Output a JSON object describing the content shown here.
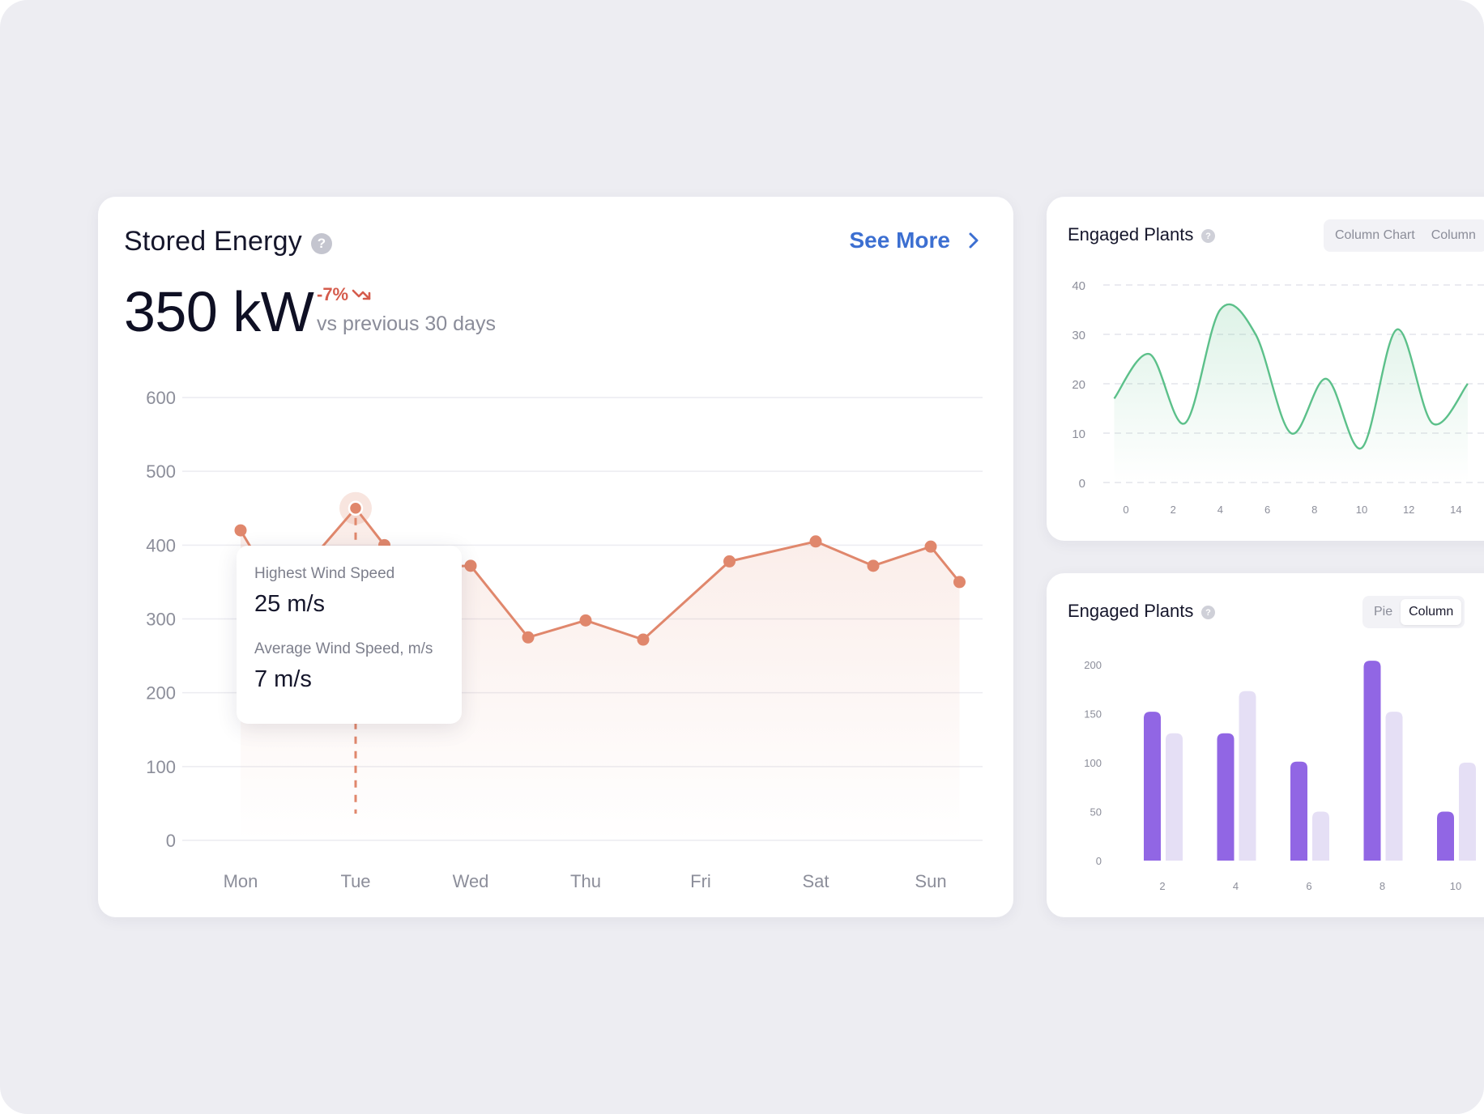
{
  "stored_energy": {
    "title": "Stored Energy",
    "see_more": "See More",
    "value": "350 kW",
    "delta": "-7%",
    "delta_caption": "vs previous 30 days",
    "tooltip": {
      "label_1": "Highest Wind Speed",
      "value_1": "25 m/s",
      "label_2": "Average Wind Speed, m/s",
      "value_2": "7 m/s"
    }
  },
  "engaged_plants_line": {
    "title": "Engaged Plants",
    "tabs": [
      "Column Chart",
      "Column"
    ]
  },
  "engaged_plants_column": {
    "title": "Engaged Plants",
    "tabs": [
      "Pie",
      "Column"
    ],
    "active_tab": "Column"
  },
  "colors": {
    "line_orange": "#e0876c",
    "line_green": "#5cc08a",
    "bar_dark": "#9166e4",
    "bar_light": "#e5dff5",
    "link_blue": "#3c6fd1",
    "delta_red": "#d55c4d"
  },
  "chart_data": [
    {
      "type": "line",
      "title": "",
      "x": [
        0,
        0.25,
        0.5,
        1.0,
        1.25,
        1.5,
        2.0,
        2.5,
        3.0,
        3.5,
        4.25,
        5.0,
        5.5,
        6.0,
        6.25
      ],
      "categories": [
        "Mon",
        "Tue",
        "Wed",
        "Thu",
        "Fri",
        "Sat",
        "Sun"
      ],
      "series": [
        {
          "values": [
            420,
            355,
            360,
            450,
            400,
            370,
            372,
            275,
            298,
            272,
            378,
            405,
            372,
            398,
            350
          ]
        }
      ],
      "ylim": [
        0,
        600
      ],
      "yticks": [
        0,
        100,
        200,
        300,
        400,
        500,
        600
      ],
      "highlight_point": {
        "x": 1.0,
        "y": 450
      },
      "grid": true
    },
    {
      "type": "area",
      "title": "",
      "x": [
        -0.5,
        1,
        2.5,
        4,
        5.5,
        7,
        8.5,
        10,
        11.5,
        13,
        14.5
      ],
      "series": [
        {
          "values": [
            17,
            26,
            12,
            35,
            30,
            10,
            21,
            7,
            31,
            12,
            20
          ]
        }
      ],
      "xticks": [
        0,
        2,
        4,
        6,
        8,
        10,
        12,
        14
      ],
      "yticks": [
        0,
        10,
        20,
        30,
        40
      ],
      "ylim": [
        0,
        40
      ],
      "grid": true
    },
    {
      "type": "bar",
      "title": "",
      "categories": [
        "2",
        "4",
        "6",
        "8",
        "10"
      ],
      "series": [
        {
          "values": [
            152,
            130,
            101,
            204,
            50
          ]
        },
        {
          "values": [
            130,
            173,
            50,
            152,
            100
          ]
        }
      ],
      "ylim": [
        0,
        200
      ],
      "yticks": [
        0,
        50,
        100,
        150,
        200
      ]
    }
  ]
}
